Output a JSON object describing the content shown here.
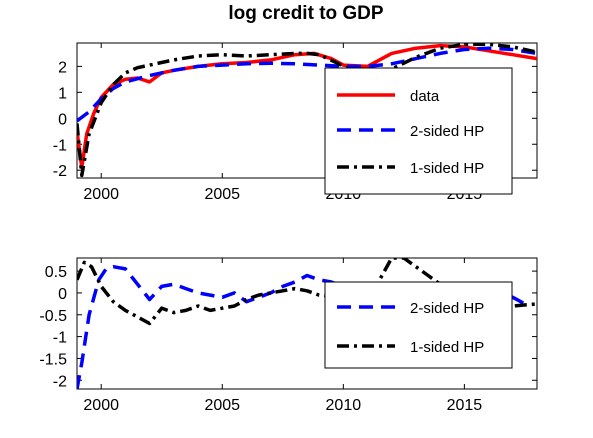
{
  "figure": {
    "title": "log credit to  GDP"
  },
  "chart_data": [
    {
      "type": "line",
      "title": "log credit to  GDP",
      "xlim": [
        1999,
        2018
      ],
      "ylim": [
        -2.3,
        2.9
      ],
      "xticks": [
        2000,
        2005,
        2010,
        2015
      ],
      "yticks": [
        -2,
        -1,
        0,
        1,
        2
      ],
      "legend_position": "lower-right",
      "series": [
        {
          "name": "data",
          "color": "#ff0000",
          "style": "solid",
          "x": [
            1999,
            1999.2,
            1999.4,
            1999.7,
            2000,
            2000.5,
            2001,
            2001.5,
            2002,
            2002.5,
            2003,
            2004,
            2005,
            2006,
            2007,
            2008,
            2008.8,
            2009.5,
            2010,
            2011,
            2012,
            2013,
            2014,
            2015,
            2016,
            2017,
            2018
          ],
          "y": [
            -0.5,
            -1.9,
            -0.6,
            0.2,
            0.8,
            1.3,
            1.5,
            1.55,
            1.4,
            1.75,
            1.85,
            2.0,
            2.1,
            2.15,
            2.25,
            2.45,
            2.5,
            2.3,
            2.05,
            2.0,
            2.5,
            2.7,
            2.8,
            2.75,
            2.6,
            2.45,
            2.3
          ]
        },
        {
          "name": "2-sided HP",
          "color": "#0000ff",
          "style": "dashed",
          "x": [
            1999,
            1999.5,
            2000,
            2000.5,
            2001,
            2002,
            2003,
            2004,
            2005,
            2006,
            2007,
            2008,
            2009,
            2010,
            2011,
            2012,
            2013,
            2014,
            2015,
            2016,
            2017,
            2018
          ],
          "y": [
            -0.1,
            0.25,
            0.75,
            1.15,
            1.4,
            1.65,
            1.85,
            2.0,
            2.05,
            2.1,
            2.12,
            2.1,
            2.05,
            2.0,
            2.0,
            2.1,
            2.3,
            2.5,
            2.65,
            2.7,
            2.65,
            2.5
          ]
        },
        {
          "name": "1-sided HP",
          "color": "#000000",
          "style": "dashdot",
          "x": [
            1999,
            1999.2,
            1999.5,
            2000,
            2000.5,
            2001,
            2001.5,
            2002,
            2003,
            2004,
            2005,
            2006,
            2007,
            2008,
            2008.5,
            2009,
            2009.7,
            2010.3,
            2011,
            2012,
            2013,
            2014,
            2015,
            2016,
            2017,
            2018
          ],
          "y": [
            -0.2,
            -2.2,
            -0.6,
            0.6,
            1.3,
            1.75,
            1.95,
            2.05,
            2.25,
            2.4,
            2.45,
            2.4,
            2.45,
            2.5,
            2.5,
            2.45,
            2.15,
            1.85,
            1.8,
            1.9,
            2.35,
            2.7,
            2.85,
            2.85,
            2.75,
            2.55
          ]
        }
      ]
    },
    {
      "type": "line",
      "xlim": [
        1999,
        2018
      ],
      "ylim": [
        -2.2,
        0.8
      ],
      "xticks": [
        2000,
        2005,
        2010,
        2015
      ],
      "yticks": [
        -2,
        -1.5,
        -1,
        -0.5,
        0,
        0.5
      ],
      "ytick_labels": [
        "-2",
        "-1.5",
        "-1",
        "-0.5",
        "0",
        "0.5"
      ],
      "legend_position": "right",
      "series": [
        {
          "name": "2-sided HP",
          "color": "#0000ff",
          "style": "dashed",
          "x": [
            1999,
            1999.2,
            1999.5,
            1999.9,
            2000.2,
            2000.5,
            2001,
            2001.5,
            2002,
            2002.5,
            2003,
            2003.5,
            2004,
            2004.5,
            2005,
            2005.5,
            2006,
            2006.5,
            2007,
            2007.5,
            2008,
            2008.5,
            2009,
            2009.5,
            2010,
            2011,
            2012,
            2013,
            2014,
            2015,
            2016,
            2017,
            2017.5
          ],
          "y": [
            -2.2,
            -1.6,
            -0.5,
            0.3,
            0.55,
            0.6,
            0.55,
            0.2,
            -0.15,
            0.15,
            0.2,
            0.1,
            0.0,
            -0.05,
            -0.1,
            0.0,
            -0.2,
            -0.1,
            0.0,
            0.15,
            0.25,
            0.4,
            0.3,
            0.25,
            0.15,
            -0.25,
            -0.15,
            0.05,
            0.1,
            0.1,
            0.05,
            -0.1,
            -0.25
          ]
        },
        {
          "name": "1-sided HP",
          "color": "#000000",
          "style": "dashdot",
          "x": [
            1999,
            1999.3,
            1999.6,
            2000,
            2000.5,
            2001,
            2001.5,
            2002,
            2002.5,
            2003,
            2003.5,
            2004,
            2004.5,
            2005,
            2005.5,
            2006,
            2006.5,
            2007,
            2007.5,
            2008,
            2008.5,
            2009,
            2010,
            2010.5,
            2011,
            2011.5,
            2012,
            2012.5,
            2013,
            2013.5,
            2014,
            2015,
            2016,
            2017,
            2018
          ],
          "y": [
            0.3,
            0.7,
            0.6,
            0.15,
            -0.2,
            -0.4,
            -0.55,
            -0.7,
            -0.35,
            -0.45,
            -0.4,
            -0.3,
            -0.4,
            -0.35,
            -0.3,
            -0.15,
            -0.05,
            0.0,
            0.05,
            0.1,
            0.05,
            -0.05,
            -0.1,
            -0.15,
            -0.1,
            0.3,
            0.8,
            0.8,
            0.6,
            0.4,
            0.2,
            0.0,
            -0.1,
            -0.3,
            -0.25
          ]
        }
      ]
    }
  ]
}
